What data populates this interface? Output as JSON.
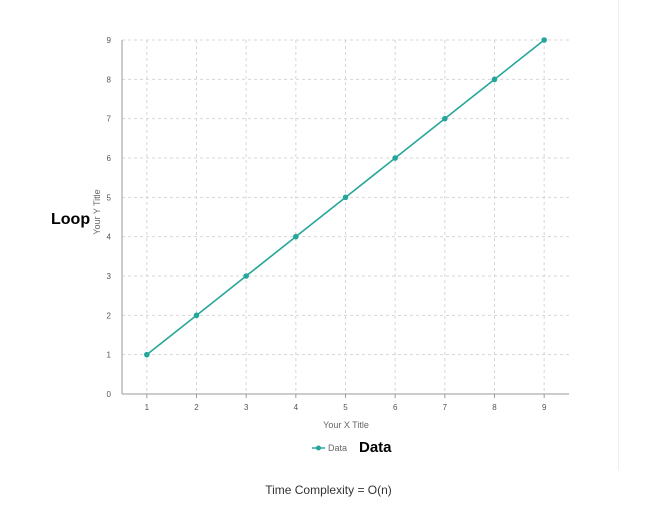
{
  "chart_data": {
    "type": "line",
    "xlabel": "Your X Title",
    "ylabel": "Your Y Title",
    "x": [
      1,
      2,
      3,
      4,
      5,
      6,
      7,
      8,
      9
    ],
    "xlim": [
      0.5,
      9.5
    ],
    "ylim": [
      0,
      9
    ],
    "xticks": [
      1,
      2,
      3,
      4,
      5,
      6,
      7,
      8,
      9
    ],
    "yticks": [
      0,
      1,
      2,
      3,
      4,
      5,
      6,
      7,
      8,
      9
    ],
    "grid": true,
    "legend_position": "bottom",
    "series": [
      {
        "name": "Data",
        "values": [
          1,
          2,
          3,
          4,
          5,
          6,
          7,
          8,
          9
        ],
        "color": "#26a69a"
      }
    ],
    "annotations": {
      "left_label": "Loop",
      "legend_label": "Data"
    }
  },
  "caption": "Time Complexity = O(n)"
}
